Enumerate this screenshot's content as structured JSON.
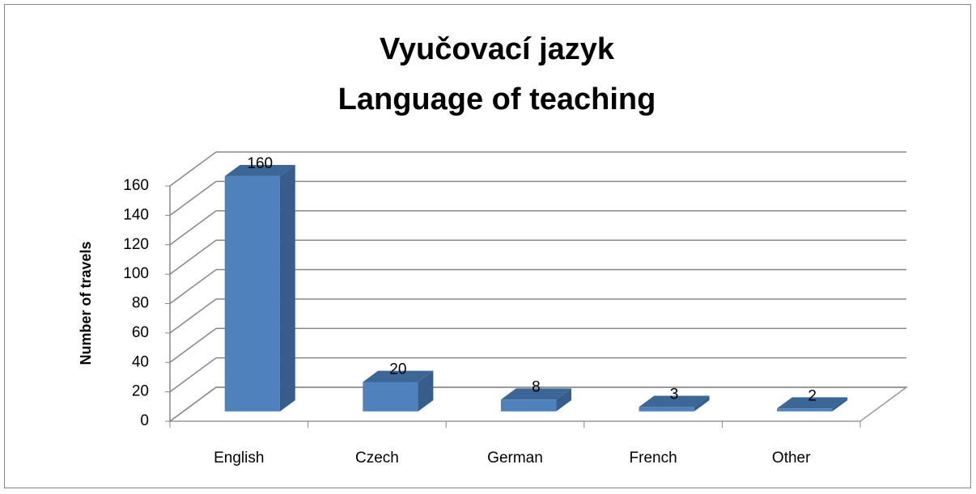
{
  "chart_data": {
    "type": "bar3d",
    "title": [
      "Vyučovací jazyk",
      "Language of teaching"
    ],
    "y_axis_label": "Number of travels",
    "categories": [
      "English",
      "Czech",
      "German",
      "French",
      "Other"
    ],
    "values": [
      160,
      20,
      8,
      3,
      2
    ],
    "color": "#4f81bd",
    "ylim": [
      0,
      160
    ],
    "yticks": [
      0,
      20,
      40,
      60,
      80,
      100,
      120,
      140,
      160
    ],
    "grid": true
  }
}
